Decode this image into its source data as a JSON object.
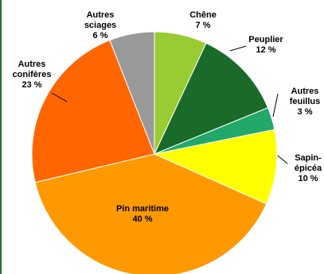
{
  "chart_data": {
    "type": "pie",
    "start_angle_deg": 0,
    "direction": "clockwise",
    "slices": [
      {
        "label": [
          "Chêne",
          "7 %"
        ],
        "value": 7,
        "color": "#99cc33"
      },
      {
        "label": [
          "Peuplier",
          "12 %"
        ],
        "value": 12,
        "color": "#1a6b2a"
      },
      {
        "label": [
          "Autres",
          "feuillus",
          "3 %"
        ],
        "value": 3,
        "color": "#22a86b"
      },
      {
        "label": [
          "Sapin-",
          "épicéa",
          "10 %"
        ],
        "value": 10,
        "color": "#ffff00"
      },
      {
        "label": [
          "Pin maritime",
          "40 %"
        ],
        "value": 40,
        "color": "#ff9900"
      },
      {
        "label": [
          "Autres",
          "conifères",
          "23 %"
        ],
        "value": 23,
        "color": "#ff6600"
      },
      {
        "label": [
          "Autres",
          "sciages",
          "6 %"
        ],
        "value": 6,
        "color": "#999999"
      }
    ]
  }
}
